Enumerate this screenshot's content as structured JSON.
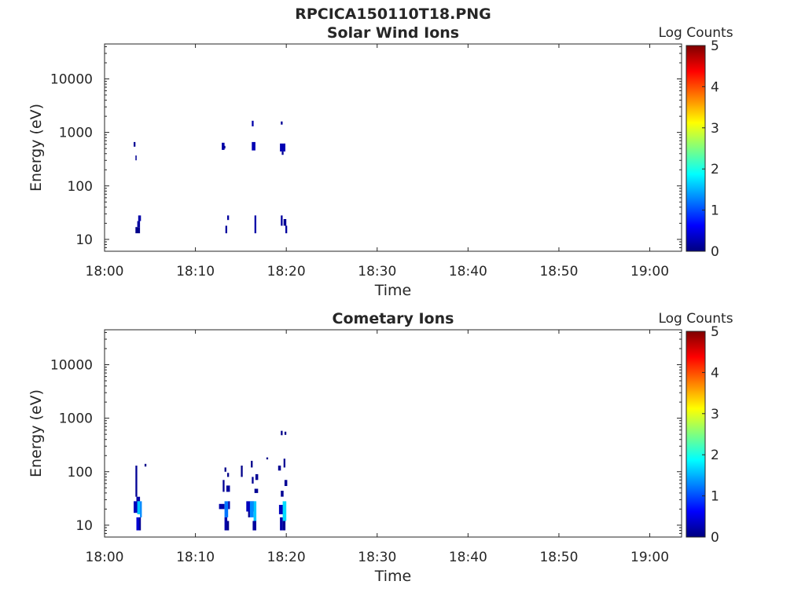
{
  "figure_title": "RPCICA150110T18.PNG",
  "colors": {
    "axis": "#262626",
    "colormap": "jet",
    "colormap_stops": [
      "#00007f",
      "#0000ff",
      "#007fff",
      "#00ffff",
      "#7fff7f",
      "#ffff00",
      "#ff7f00",
      "#ff0000",
      "#7f0000"
    ]
  },
  "chart_data": [
    {
      "type": "heatmap",
      "title": "Solar Wind Ions",
      "xlabel": "Time",
      "ylabel": "Energy (eV)",
      "x_ticks": [
        "18:00",
        "18:10",
        "18:20",
        "18:30",
        "18:40",
        "18:50",
        "19:00"
      ],
      "xlim": [
        "18:00",
        "19:03.5"
      ],
      "y_scale": "log",
      "y_ticks": [
        "10",
        "100",
        "1000",
        "10000"
      ],
      "ylim": [
        6,
        45000
      ],
      "colorbar": {
        "label": "Log Counts",
        "ticks": [
          "0",
          "1",
          "2",
          "3",
          "4",
          "5"
        ],
        "range": [
          0,
          5
        ]
      },
      "cells": [
        {
          "t0": 3.2,
          "t1": 3.4,
          "e0": 540,
          "e1": 660,
          "v": 0.1
        },
        {
          "t0": 3.4,
          "t1": 3.5,
          "e0": 300,
          "e1": 370,
          "v": 0.1
        },
        {
          "t0": 3.4,
          "t1": 3.9,
          "e0": 13,
          "e1": 17,
          "v": 0.05
        },
        {
          "t0": 3.6,
          "t1": 3.9,
          "e0": 17,
          "e1": 22,
          "v": 0.15
        },
        {
          "t0": 3.7,
          "t1": 4.0,
          "e0": 22,
          "e1": 28,
          "v": 0.2
        },
        {
          "t0": 12.9,
          "t1": 13.2,
          "e0": 470,
          "e1": 640,
          "v": 0.2
        },
        {
          "t0": 13.1,
          "t1": 13.3,
          "e0": 500,
          "e1": 560,
          "v": 0.1
        },
        {
          "t0": 13.3,
          "t1": 13.5,
          "e0": 13,
          "e1": 18,
          "v": 0.15
        },
        {
          "t0": 13.5,
          "t1": 13.7,
          "e0": 23,
          "e1": 28,
          "v": 0.15
        },
        {
          "t0": 16.2,
          "t1": 16.4,
          "e0": 1300,
          "e1": 1650,
          "v": 0.2
        },
        {
          "t0": 16.2,
          "t1": 16.6,
          "e0": 460,
          "e1": 660,
          "v": 0.25
        },
        {
          "t0": 16.5,
          "t1": 16.7,
          "e0": 13,
          "e1": 28,
          "v": 0.2
        },
        {
          "t0": 19.4,
          "t1": 19.6,
          "e0": 1400,
          "e1": 1600,
          "v": 0.1
        },
        {
          "t0": 19.3,
          "t1": 19.9,
          "e0": 440,
          "e1": 620,
          "v": 0.25
        },
        {
          "t0": 19.5,
          "t1": 19.7,
          "e0": 380,
          "e1": 440,
          "v": 0.1
        },
        {
          "t0": 19.4,
          "t1": 19.6,
          "e0": 18,
          "e1": 28,
          "v": 0.15
        },
        {
          "t0": 19.7,
          "t1": 20.0,
          "e0": 18,
          "e1": 24,
          "v": 0.1
        },
        {
          "t0": 19.9,
          "t1": 20.1,
          "e0": 13,
          "e1": 18,
          "v": 0.15
        }
      ]
    },
    {
      "type": "heatmap",
      "title": "Cometary Ions",
      "xlabel": "Time",
      "ylabel": "Energy (eV)",
      "x_ticks": [
        "18:00",
        "18:10",
        "18:20",
        "18:30",
        "18:40",
        "18:50",
        "19:00"
      ],
      "xlim": [
        "18:00",
        "19:03.5"
      ],
      "y_scale": "log",
      "y_ticks": [
        "10",
        "100",
        "1000",
        "10000"
      ],
      "ylim": [
        6,
        45000
      ],
      "colorbar": {
        "label": "Log Counts",
        "ticks": [
          "0",
          "1",
          "2",
          "3",
          "4",
          "5"
        ],
        "range": [
          0,
          5
        ]
      },
      "cells": [
        {
          "t0": 3.2,
          "t1": 3.9,
          "e0": 17,
          "e1": 28,
          "v": 0.3
        },
        {
          "t0": 3.5,
          "t1": 3.9,
          "e0": 28,
          "e1": 34,
          "v": 0.2
        },
        {
          "t0": 3.4,
          "t1": 3.6,
          "e0": 34,
          "e1": 130,
          "v": 0.1
        },
        {
          "t0": 3.6,
          "t1": 3.9,
          "e0": 16,
          "e1": 28,
          "v": 1.6
        },
        {
          "t0": 3.9,
          "t1": 4.1,
          "e0": 14,
          "e1": 28,
          "v": 1.3
        },
        {
          "t0": 3.5,
          "t1": 3.8,
          "e0": 8,
          "e1": 14,
          "v": 0.4
        },
        {
          "t0": 3.8,
          "t1": 4.0,
          "e0": 8,
          "e1": 14,
          "v": 0.1
        },
        {
          "t0": 4.4,
          "t1": 4.6,
          "e0": 125,
          "e1": 140,
          "v": 0.05
        },
        {
          "t0": 12.6,
          "t1": 13.2,
          "e0": 20,
          "e1": 25,
          "v": 0.2
        },
        {
          "t0": 13.2,
          "t1": 13.6,
          "e0": 14,
          "e1": 28,
          "v": 1.2
        },
        {
          "t0": 13.2,
          "t1": 13.5,
          "e0": 8,
          "e1": 14,
          "v": 0.2
        },
        {
          "t0": 13.5,
          "t1": 13.7,
          "e0": 8,
          "e1": 12,
          "v": 0.05
        },
        {
          "t0": 13.6,
          "t1": 13.8,
          "e0": 20,
          "e1": 28,
          "v": 0.2
        },
        {
          "t0": 13.0,
          "t1": 13.2,
          "e0": 42,
          "e1": 70,
          "v": 0.1
        },
        {
          "t0": 13.4,
          "t1": 13.8,
          "e0": 42,
          "e1": 55,
          "v": 0.15
        },
        {
          "t0": 13.2,
          "t1": 13.4,
          "e0": 100,
          "e1": 120,
          "v": 0.05
        },
        {
          "t0": 13.5,
          "t1": 13.7,
          "e0": 80,
          "e1": 95,
          "v": 0.05
        },
        {
          "t0": 15.0,
          "t1": 15.2,
          "e0": 80,
          "e1": 130,
          "v": 0.05
        },
        {
          "t0": 15.6,
          "t1": 16.5,
          "e0": 18,
          "e1": 28,
          "v": 0.3
        },
        {
          "t0": 16.0,
          "t1": 16.4,
          "e0": 14,
          "e1": 28,
          "v": 1.3
        },
        {
          "t0": 16.4,
          "t1": 16.7,
          "e0": 12,
          "e1": 28,
          "v": 1.6
        },
        {
          "t0": 16.3,
          "t1": 16.7,
          "e0": 8,
          "e1": 12,
          "v": 0.15
        },
        {
          "t0": 15.8,
          "t1": 16.0,
          "e0": 14,
          "e1": 18,
          "v": 0.1
        },
        {
          "t0": 16.2,
          "t1": 16.4,
          "e0": 60,
          "e1": 80,
          "v": 0.1
        },
        {
          "t0": 16.5,
          "t1": 16.9,
          "e0": 40,
          "e1": 48,
          "v": 0.1
        },
        {
          "t0": 16.6,
          "t1": 16.9,
          "e0": 70,
          "e1": 90,
          "v": 0.1
        },
        {
          "t0": 16.1,
          "t1": 16.3,
          "e0": 120,
          "e1": 160,
          "v": 0.05
        },
        {
          "t0": 17.8,
          "t1": 18.0,
          "e0": 170,
          "e1": 185,
          "v": 0.05
        },
        {
          "t0": 19.2,
          "t1": 19.8,
          "e0": 16,
          "e1": 24,
          "v": 0.3
        },
        {
          "t0": 19.6,
          "t1": 20.0,
          "e0": 12,
          "e1": 28,
          "v": 1.7
        },
        {
          "t0": 19.3,
          "t1": 19.6,
          "e0": 8,
          "e1": 14,
          "v": 0.2
        },
        {
          "t0": 19.6,
          "t1": 19.9,
          "e0": 8,
          "e1": 12,
          "v": 0.1
        },
        {
          "t0": 19.4,
          "t1": 19.7,
          "e0": 34,
          "e1": 44,
          "v": 0.1
        },
        {
          "t0": 19.8,
          "t1": 20.1,
          "e0": 54,
          "e1": 70,
          "v": 0.1
        },
        {
          "t0": 19.1,
          "t1": 19.4,
          "e0": 105,
          "e1": 130,
          "v": 0.1
        },
        {
          "t0": 19.7,
          "t1": 19.9,
          "e0": 120,
          "e1": 175,
          "v": 0.1
        },
        {
          "t0": 19.4,
          "t1": 19.6,
          "e0": 480,
          "e1": 580,
          "v": 0.05
        },
        {
          "t0": 19.8,
          "t1": 20.0,
          "e0": 490,
          "e1": 560,
          "v": 0.05
        }
      ]
    }
  ]
}
